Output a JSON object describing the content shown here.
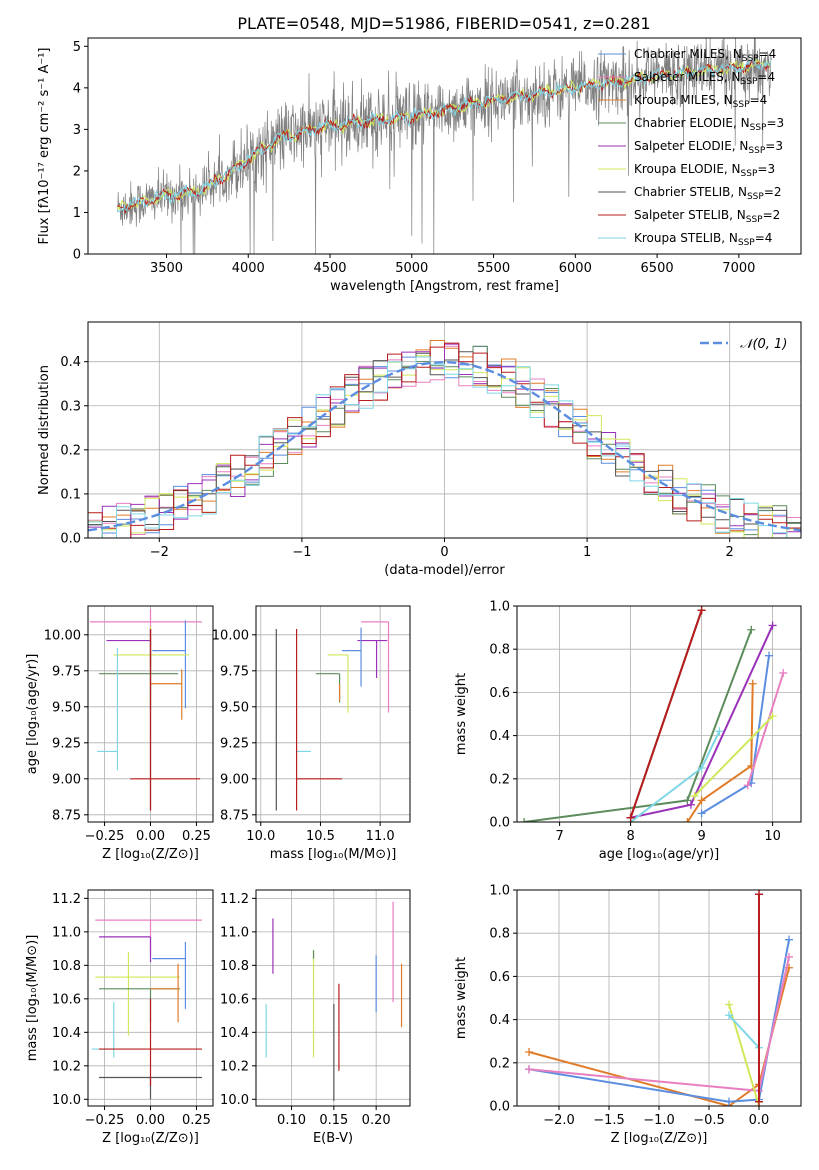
{
  "figure_title": "PLATE=0548, MJD=51986, FIBERID=0541, z=0.281",
  "colors": {
    "chabrier_miles": "#5b8de0",
    "salpeter_miles": "#e87fc0",
    "kroupa_miles": "#e07c29",
    "chabrier_elodie": "#5c8c5c",
    "salpeter_elodie": "#9932b8",
    "kroupa_elodie": "#cfe85a",
    "chabrier_stelib": "#555555",
    "salpeter_stelib": "#b81c1c",
    "kroupa_stelib": "#7fd6e6",
    "data": "#808080",
    "grid": "#b0b0b0"
  },
  "legend_entries": [
    {
      "key": "chabrier_miles",
      "text": "Chabrier MILES, N",
      "sub": "SSP",
      "suffix": "=4"
    },
    {
      "key": "salpeter_miles",
      "text": "Salpeter MILES, N",
      "sub": "SSP",
      "suffix": "=4"
    },
    {
      "key": "kroupa_miles",
      "text": "Kroupa MILES, N",
      "sub": "SSP",
      "suffix": "=4"
    },
    {
      "key": "chabrier_elodie",
      "text": "Chabrier ELODIE, N",
      "sub": "SSP",
      "suffix": "=3"
    },
    {
      "key": "salpeter_elodie",
      "text": "Salpeter ELODIE, N",
      "sub": "SSP",
      "suffix": "=3"
    },
    {
      "key": "kroupa_elodie",
      "text": "Kroupa ELODIE, N",
      "sub": "SSP",
      "suffix": "=3"
    },
    {
      "key": "chabrier_stelib",
      "text": "Chabrier STELIB, N",
      "sub": "SSP",
      "suffix": "=2"
    },
    {
      "key": "salpeter_stelib",
      "text": "Salpeter STELIB, N",
      "sub": "SSP",
      "suffix": "=2"
    },
    {
      "key": "kroupa_stelib",
      "text": "Kroupa STELIB, N",
      "sub": "SSP",
      "suffix": "=4"
    }
  ],
  "chart_data": [
    {
      "id": "spectrum",
      "type": "line",
      "title": "PLATE=0548, MJD=51986, FIBERID=0541, z=0.281",
      "xlabel": "wavelength [Angstrom, rest frame]",
      "ylabel": "Flux [fλ10⁻¹⁷ erg cm⁻² s⁻¹ A⁻¹]",
      "xlim": [
        3020,
        7380
      ],
      "ylim": [
        0,
        5.2
      ],
      "xticks": [
        3500,
        4000,
        4500,
        5000,
        5500,
        6000,
        6500,
        7000
      ],
      "yticks": [
        0,
        1,
        2,
        3,
        4,
        5
      ],
      "grid": false,
      "legend": "top-right",
      "continuum_anchors": [
        [
          3200,
          1.1
        ],
        [
          3500,
          1.4
        ],
        [
          3700,
          1.5
        ],
        [
          3900,
          2.0
        ],
        [
          4000,
          2.3
        ],
        [
          4200,
          2.8
        ],
        [
          4500,
          3.1
        ],
        [
          5000,
          3.3
        ],
        [
          5500,
          3.7
        ],
        [
          6000,
          4.0
        ],
        [
          6500,
          4.3
        ],
        [
          7000,
          4.5
        ],
        [
          7200,
          4.6
        ]
      ],
      "wavelength_range": [
        3200,
        7200
      ]
    },
    {
      "id": "residuals",
      "type": "histogram",
      "xlabel": "(data-model)/error",
      "ylabel": "Normed distribution",
      "xlim": [
        -2.5,
        2.5
      ],
      "ylim": [
        0,
        0.49
      ],
      "xticks": [
        -2,
        -1,
        0,
        1,
        2
      ],
      "yticks": [
        0.0,
        0.1,
        0.2,
        0.3,
        0.4
      ],
      "grid": true,
      "legend": "top-right",
      "reference_label": "𝒩(0, 1)",
      "reference_mean": 0,
      "reference_sigma": 1,
      "bin_width": 0.1
    },
    {
      "id": "age_vs_Z",
      "type": "errorbar",
      "xlabel": "Z [log₁₀(Z/Z⊙)]",
      "ylabel": "age  [log₁₀(age/yr)]",
      "xlim": [
        -0.34,
        0.34
      ],
      "ylim": [
        8.7,
        10.2
      ],
      "xticks": [
        -0.25,
        0.0,
        0.25
      ],
      "yticks": [
        8.75,
        9.0,
        9.25,
        9.5,
        9.75,
        10.0
      ],
      "grid": true,
      "points": [
        {
          "key": "salpeter_miles",
          "x": 0.0,
          "y": 10.09,
          "xerr": [
            0.33,
            0.28
          ],
          "yerr": [
            0.26,
            0.09
          ]
        },
        {
          "key": "salpeter_elodie",
          "x": 0.0,
          "y": 9.96,
          "xerr": [
            0.24,
            0.0
          ],
          "yerr": [
            0.18,
            0.1
          ]
        },
        {
          "key": "chabrier_miles",
          "x": 0.19,
          "y": 9.89,
          "xerr": [
            0.18,
            0.0
          ],
          "yerr": [
            0.4,
            0.21
          ]
        },
        {
          "key": "kroupa_elodie",
          "x": 0.0,
          "y": 9.86,
          "xerr": [
            0.2,
            0.21
          ],
          "yerr": [
            0.3,
            0.2
          ]
        },
        {
          "key": "chabrier_elodie",
          "x": 0.0,
          "y": 9.73,
          "xerr": [
            0.28,
            0.15
          ],
          "yerr": [
            0.25,
            0.15
          ]
        },
        {
          "key": "kroupa_miles",
          "x": 0.17,
          "y": 9.66,
          "xerr": [
            0.17,
            0.0
          ],
          "yerr": [
            0.25,
            0.1
          ]
        },
        {
          "key": "kroupa_stelib",
          "x": -0.18,
          "y": 9.19,
          "xerr": [
            0.11,
            0.0
          ],
          "yerr": [
            0.13,
            0.72
          ]
        },
        {
          "key": "chabrier_stelib",
          "x": 0.0,
          "y": 9.0,
          "xerr": [
            0.0,
            0.0
          ],
          "yerr": [
            0.22,
            1.04
          ]
        },
        {
          "key": "salpeter_stelib",
          "x": 0.0,
          "y": 9.0,
          "xerr": [
            0.11,
            0.27
          ],
          "yerr": [
            0.22,
            1.04
          ]
        }
      ]
    },
    {
      "id": "age_vs_mass",
      "type": "errorbar",
      "xlabel": "mass [log₁₀(M/M⊙)]",
      "ylabel": "",
      "xlim": [
        9.96,
        11.25
      ],
      "ylim": [
        8.7,
        10.2
      ],
      "xticks": [
        10.0,
        10.5,
        11.0
      ],
      "yticks": [
        8.75,
        9.0,
        9.25,
        9.5,
        9.75,
        10.0
      ],
      "grid": true,
      "points": [
        {
          "key": "salpeter_miles",
          "x": 11.07,
          "y": 10.09,
          "xerr": [
            0.23,
            0.0
          ],
          "yerr": [
            0.63,
            0.0
          ]
        },
        {
          "key": "salpeter_elodie",
          "x": 10.97,
          "y": 9.96,
          "xerr": [
            0.16,
            0.09
          ],
          "yerr": [
            0.26,
            0.0
          ]
        },
        {
          "key": "chabrier_miles",
          "x": 10.84,
          "y": 9.89,
          "xerr": [
            0.16,
            0.0
          ],
          "yerr": [
            0.25,
            0.16
          ]
        },
        {
          "key": "kroupa_elodie",
          "x": 10.73,
          "y": 9.86,
          "xerr": [
            0.17,
            0.0
          ],
          "yerr": [
            0.4,
            0.0
          ]
        },
        {
          "key": "chabrier_elodie",
          "x": 10.66,
          "y": 9.73,
          "xerr": [
            0.2,
            0.0
          ],
          "yerr": [
            0.2,
            0.0
          ]
        },
        {
          "key": "kroupa_miles",
          "x": 10.66,
          "y": 9.66,
          "xerr": [
            0.0,
            0.0
          ],
          "yerr": [
            0.12,
            0.0
          ]
        },
        {
          "key": "kroupa_stelib",
          "x": 10.3,
          "y": 9.19,
          "xerr": [
            0.0,
            0.12
          ],
          "yerr": [
            0.0,
            0.0
          ]
        },
        {
          "key": "chabrier_stelib",
          "x": 10.13,
          "y": 9.0,
          "xerr": [
            0.0,
            0.0
          ],
          "yerr": [
            0.22,
            1.04
          ]
        },
        {
          "key": "salpeter_stelib",
          "x": 10.3,
          "y": 9.0,
          "xerr": [
            0.0,
            0.38
          ],
          "yerr": [
            0.22,
            1.04
          ]
        }
      ]
    },
    {
      "id": "mass_weight_vs_age",
      "type": "line",
      "xlabel": "age  [log₁₀(age/yr)]",
      "ylabel": "mass weight",
      "xlim": [
        6.4,
        10.4
      ],
      "ylim": [
        0,
        1.0
      ],
      "xticks": [
        7,
        8,
        9,
        10
      ],
      "yticks": [
        0.0,
        0.2,
        0.4,
        0.6,
        0.8,
        1.0
      ],
      "grid": true,
      "series": [
        {
          "key": "chabrier_elodie",
          "x": [
            6.5,
            8.8,
            9.7
          ],
          "y": [
            0.0,
            0.1,
            0.89
          ]
        },
        {
          "key": "salpeter_elodie",
          "x": [
            8.0,
            8.85,
            10.0
          ],
          "y": [
            0.02,
            0.08,
            0.91
          ]
        },
        {
          "key": "chabrier_miles",
          "x": [
            9.0,
            9.7,
            9.95
          ],
          "y": [
            0.04,
            0.18,
            0.77
          ]
        },
        {
          "key": "kroupa_miles",
          "x": [
            8.8,
            9.0,
            9.7,
            9.72
          ],
          "y": [
            0.0,
            0.1,
            0.26,
            0.64
          ]
        },
        {
          "key": "salpeter_miles",
          "x": [
            9.65,
            10.15
          ],
          "y": [
            0.17,
            0.69
          ]
        },
        {
          "key": "kroupa_elodie",
          "x": [
            8.9,
            10.0
          ],
          "y": [
            0.12,
            0.49
          ]
        },
        {
          "key": "kroupa_stelib",
          "x": [
            8.0,
            9.0,
            9.25
          ],
          "y": [
            0.0,
            0.25,
            0.42
          ]
        },
        {
          "key": "chabrier_stelib",
          "x": [
            8.0,
            9.0
          ],
          "y": [
            0.02,
            0.98
          ]
        },
        {
          "key": "salpeter_stelib",
          "x": [
            8.0,
            9.0
          ],
          "y": [
            0.02,
            0.98
          ]
        }
      ]
    },
    {
      "id": "mass_vs_Z",
      "type": "errorbar",
      "xlabel": "Z [log₁₀(Z/Z⊙)]",
      "ylabel": "mass [log₁₀(M/M⊙)]",
      "xlim": [
        -0.34,
        0.34
      ],
      "ylim": [
        9.96,
        11.25
      ],
      "xticks": [
        -0.25,
        0.0,
        0.25
      ],
      "yticks": [
        10.0,
        10.2,
        10.4,
        10.6,
        10.8,
        11.0,
        11.2
      ],
      "grid": true,
      "points": [
        {
          "key": "salpeter_miles",
          "x": 0.0,
          "y": 11.07,
          "xerr": [
            0.3,
            0.28
          ],
          "yerr": [
            0.2,
            0.0
          ]
        },
        {
          "key": "salpeter_elodie",
          "x": 0.0,
          "y": 10.97,
          "xerr": [
            0.28,
            0.0
          ],
          "yerr": [
            0.15,
            0.0
          ]
        },
        {
          "key": "chabrier_miles",
          "x": 0.19,
          "y": 10.84,
          "xerr": [
            0.18,
            0.0
          ],
          "yerr": [
            0.3,
            0.1
          ]
        },
        {
          "key": "kroupa_elodie",
          "x": -0.12,
          "y": 10.73,
          "xerr": [
            0.18,
            0.28
          ],
          "yerr": [
            0.35,
            0.15
          ]
        },
        {
          "key": "chabrier_elodie",
          "x": 0.0,
          "y": 10.66,
          "xerr": [
            0.28,
            0.16
          ],
          "yerr": [
            0.2,
            0.0
          ]
        },
        {
          "key": "kroupa_miles",
          "x": 0.15,
          "y": 10.66,
          "xerr": [
            0.15,
            0.0
          ],
          "yerr": [
            0.2,
            0.15
          ]
        },
        {
          "key": "kroupa_stelib",
          "x": -0.2,
          "y": 10.3,
          "xerr": [
            0.12,
            0.0
          ],
          "yerr": [
            0.05,
            0.28
          ]
        },
        {
          "key": "chabrier_stelib",
          "x": 0.0,
          "y": 10.13,
          "xerr": [
            0.28,
            0.28
          ],
          "yerr": [
            0.13,
            0.0
          ]
        },
        {
          "key": "salpeter_stelib",
          "x": 0.0,
          "y": 10.3,
          "xerr": [
            0.28,
            0.28
          ],
          "yerr": [
            0.22,
            0.3
          ]
        }
      ]
    },
    {
      "id": "mass_vs_ebv",
      "type": "errorbar",
      "xlabel": "E(B-V)",
      "ylabel": "",
      "xlim": [
        0.058,
        0.24
      ],
      "ylim": [
        9.96,
        11.25
      ],
      "xticks": [
        0.1,
        0.15,
        0.2
      ],
      "yticks": [
        10.0,
        10.2,
        10.4,
        10.6,
        10.8,
        11.0,
        11.2
      ],
      "grid": true,
      "points": [
        {
          "key": "salpeter_miles",
          "x": 0.22,
          "y": 10.88,
          "xerr": [
            0,
            0
          ],
          "yerr": [
            0.3,
            0.3
          ]
        },
        {
          "key": "salpeter_elodie",
          "x": 0.078,
          "y": 10.91,
          "xerr": [
            0,
            0
          ],
          "yerr": [
            0.16,
            0.17
          ]
        },
        {
          "key": "chabrier_miles",
          "x": 0.2,
          "y": 10.69,
          "xerr": [
            0,
            0
          ],
          "yerr": [
            0.17,
            0.17
          ]
        },
        {
          "key": "kroupa_elodie",
          "x": 0.126,
          "y": 10.56,
          "xerr": [
            0,
            0
          ],
          "yerr": [
            0.31,
            0.33
          ]
        },
        {
          "key": "chabrier_elodie",
          "x": 0.126,
          "y": 10.87,
          "xerr": [
            0,
            0
          ],
          "yerr": [
            0.03,
            0.02
          ]
        },
        {
          "key": "kroupa_miles",
          "x": 0.23,
          "y": 10.62,
          "xerr": [
            0,
            0
          ],
          "yerr": [
            0.19,
            0.19
          ]
        },
        {
          "key": "kroupa_stelib",
          "x": 0.07,
          "y": 10.41,
          "xerr": [
            0,
            0
          ],
          "yerr": [
            0.16,
            0.16
          ]
        },
        {
          "key": "chabrier_stelib",
          "x": 0.15,
          "y": 10.28,
          "xerr": [
            0,
            0
          ],
          "yerr": [
            0.29,
            0.29
          ]
        },
        {
          "key": "salpeter_stelib",
          "x": 0.156,
          "y": 10.43,
          "xerr": [
            0,
            0
          ],
          "yerr": [
            0.26,
            0.26
          ]
        }
      ]
    },
    {
      "id": "mass_weight_vs_Z",
      "type": "line",
      "xlabel": "Z [log₁₀(Z/Z⊙)]",
      "ylabel": "mass weight",
      "xlim": [
        -2.42,
        0.42
      ],
      "ylim": [
        0,
        1.0
      ],
      "xticks": [
        -2.0,
        -1.5,
        -1.0,
        -0.5,
        0.0
      ],
      "yticks": [
        0.0,
        0.2,
        0.4,
        0.6,
        0.8,
        1.0
      ],
      "grid": true,
      "series": [
        {
          "key": "kroupa_miles",
          "x": [
            -2.3,
            -0.3,
            0.0,
            0.3
          ],
          "y": [
            0.25,
            0.0,
            0.1,
            0.64
          ]
        },
        {
          "key": "chabrier_miles",
          "x": [
            -2.3,
            -0.3,
            0.0,
            0.3
          ],
          "y": [
            0.17,
            0.02,
            0.03,
            0.77
          ]
        },
        {
          "key": "salpeter_miles",
          "x": [
            -2.3,
            0.0,
            0.3
          ],
          "y": [
            0.17,
            0.07,
            0.69
          ]
        },
        {
          "key": "kroupa_elodie",
          "x": [
            -0.3,
            0.0
          ],
          "y": [
            0.47,
            0.0
          ]
        },
        {
          "key": "kroupa_stelib",
          "x": [
            -0.3,
            0.0
          ],
          "y": [
            0.42,
            0.27
          ]
        },
        {
          "key": "chabrier_stelib",
          "x": [
            0.0,
            0.0
          ],
          "y": [
            0.02,
            0.98
          ]
        },
        {
          "key": "salpeter_stelib",
          "x": [
            0.0,
            0.0
          ],
          "y": [
            0.02,
            0.98
          ]
        }
      ]
    }
  ]
}
